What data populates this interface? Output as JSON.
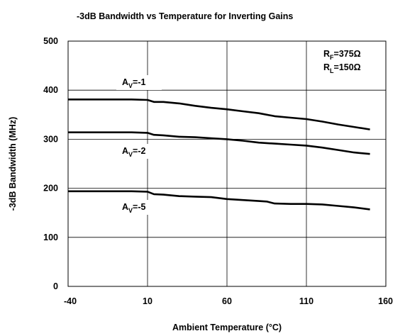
{
  "chart_data": {
    "type": "line",
    "title": "-3dB Bandwidth vs Temperature for Inverting Gains",
    "xlabel": "Ambient Temperature (°C)",
    "ylabel": "-3dB Bandwidth (MHz)",
    "xlim": [
      -40,
      160
    ],
    "ylim": [
      0,
      500
    ],
    "xticks": [
      "-40",
      "10",
      "60",
      "110",
      "160"
    ],
    "yticks": [
      "0",
      "100",
      "200",
      "300",
      "400",
      "500"
    ],
    "grid": true,
    "conditions": [
      {
        "symbol": "R",
        "sub": "F",
        "rest": "=375Ω"
      },
      {
        "symbol": "R",
        "sub": "L",
        "rest": "=150Ω"
      }
    ],
    "series": [
      {
        "name": "AV=-1",
        "label": {
          "symbol": "A",
          "sub": "V",
          "rest": "=-1"
        },
        "x": [
          -40,
          -20,
          0,
          10,
          14,
          20,
          30,
          40,
          50,
          60,
          70,
          80,
          90,
          100,
          110,
          120,
          130,
          140,
          150
        ],
        "y": [
          381,
          381,
          381,
          380,
          376,
          376,
          373,
          368,
          364,
          361,
          357,
          353,
          347,
          344,
          341,
          336,
          330,
          325,
          320
        ]
      },
      {
        "name": "AV=-2",
        "label": {
          "symbol": "A",
          "sub": "V",
          "rest": "=-2"
        },
        "x": [
          -40,
          -20,
          0,
          10,
          14,
          20,
          30,
          40,
          50,
          60,
          70,
          80,
          90,
          100,
          110,
          120,
          130,
          140,
          150
        ],
        "y": [
          314,
          314,
          314,
          313,
          309,
          308,
          305,
          304,
          302,
          300,
          297,
          293,
          291,
          289,
          287,
          283,
          278,
          273,
          270
        ]
      },
      {
        "name": "AV=-5",
        "label": {
          "symbol": "A",
          "sub": "V",
          "rest": "=-5"
        },
        "x": [
          -40,
          -20,
          0,
          10,
          14,
          20,
          30,
          40,
          50,
          60,
          70,
          80,
          85,
          90,
          100,
          110,
          120,
          130,
          140,
          150
        ],
        "y": [
          194,
          194,
          194,
          193,
          188,
          187,
          184,
          183,
          182,
          178,
          176,
          174,
          173,
          169,
          168,
          168,
          167,
          164,
          161,
          157
        ]
      }
    ]
  }
}
